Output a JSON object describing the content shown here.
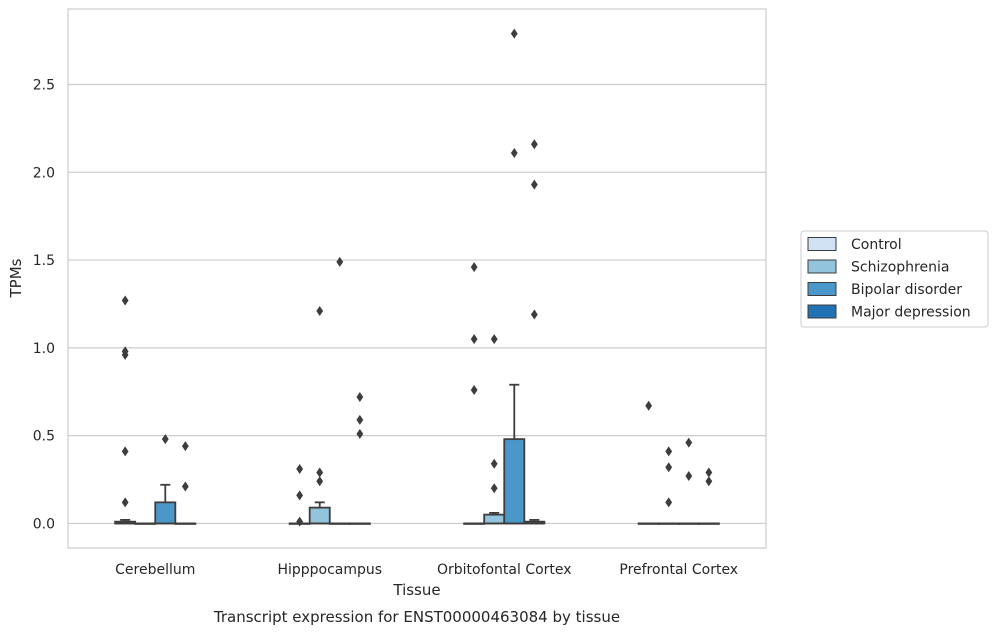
{
  "chart_data": {
    "type": "box",
    "caption": "Transcript expression for ENST00000463084 by tissue",
    "xlabel": "Tissue",
    "ylabel": "TPMs",
    "categories": [
      "Cerebellum",
      "Hipppocampus",
      "Orbitofontal Cortex",
      "Prefrontal Cortex"
    ],
    "ylim": [
      -0.14,
      2.93
    ],
    "yticks": [
      0.0,
      0.5,
      1.0,
      1.5,
      2.0,
      2.5
    ],
    "ytick_labels": [
      "0.0",
      "0.5",
      "1.0",
      "1.5",
      "2.0",
      "2.5"
    ],
    "grid": "horizontal",
    "legend_position": "right",
    "series": [
      {
        "name": "Control",
        "color": "#cfe1f2",
        "boxes": [
          {
            "q1": 0,
            "median": 0,
            "q3": 0.01,
            "whisker_low": 0,
            "whisker_high": 0.02,
            "outliers": [
              0.12,
              0.41,
              0.96,
              0.98,
              1.27
            ]
          },
          {
            "q1": 0,
            "median": 0,
            "q3": 0,
            "whisker_low": 0,
            "whisker_high": 0,
            "outliers": [
              0.01,
              0.16,
              0.31
            ]
          },
          {
            "q1": 0,
            "median": 0,
            "q3": 0,
            "whisker_low": 0,
            "whisker_high": 0,
            "outliers": [
              0.76,
              1.05,
              1.46
            ]
          },
          {
            "q1": 0,
            "median": 0,
            "q3": 0,
            "whisker_low": 0,
            "whisker_high": 0,
            "outliers": [
              0.67
            ]
          }
        ]
      },
      {
        "name": "Schizophrenia",
        "color": "#93c4de",
        "boxes": [
          {
            "q1": 0,
            "median": 0,
            "q3": 0,
            "whisker_low": 0,
            "whisker_high": 0,
            "outliers": []
          },
          {
            "q1": 0,
            "median": 0,
            "q3": 0.09,
            "whisker_low": 0,
            "whisker_high": 0.12,
            "outliers": [
              0.24,
              0.29,
              1.21
            ]
          },
          {
            "q1": 0,
            "median": 0,
            "q3": 0.05,
            "whisker_low": 0,
            "whisker_high": 0.06,
            "outliers": [
              0.2,
              0.34,
              1.05
            ]
          },
          {
            "q1": 0,
            "median": 0,
            "q3": 0,
            "whisker_low": 0,
            "whisker_high": 0,
            "outliers": [
              0.12,
              0.32,
              0.41
            ]
          }
        ]
      },
      {
        "name": "Bipolar disorder",
        "color": "#4a98c9",
        "boxes": [
          {
            "q1": 0,
            "median": 0,
            "q3": 0.12,
            "whisker_low": 0,
            "whisker_high": 0.22,
            "outliers": [
              0.48
            ]
          },
          {
            "q1": 0,
            "median": 0,
            "q3": 0,
            "whisker_low": 0,
            "whisker_high": 0,
            "outliers": [
              1.49
            ]
          },
          {
            "q1": 0,
            "median": 0,
            "q3": 0.48,
            "whisker_low": 0,
            "whisker_high": 0.79,
            "outliers": [
              2.11,
              2.79
            ]
          },
          {
            "q1": 0,
            "median": 0,
            "q3": 0,
            "whisker_low": 0,
            "whisker_high": 0,
            "outliers": [
              0.27,
              0.46
            ]
          }
        ]
      },
      {
        "name": "Major depression",
        "color": "#2171b5",
        "boxes": [
          {
            "q1": 0,
            "median": 0,
            "q3": 0,
            "whisker_low": 0,
            "whisker_high": 0,
            "outliers": [
              0.21,
              0.44
            ]
          },
          {
            "q1": 0,
            "median": 0,
            "q3": 0,
            "whisker_low": 0,
            "whisker_high": 0,
            "outliers": [
              0.51,
              0.59,
              0.72
            ]
          },
          {
            "q1": 0,
            "median": 0,
            "q3": 0.01,
            "whisker_low": 0,
            "whisker_high": 0.02,
            "outliers": [
              1.19,
              1.93,
              2.16
            ]
          },
          {
            "q1": 0,
            "median": 0,
            "q3": 0,
            "whisker_low": 0,
            "whisker_high": 0,
            "outliers": [
              0.24,
              0.29
            ]
          }
        ]
      }
    ]
  }
}
